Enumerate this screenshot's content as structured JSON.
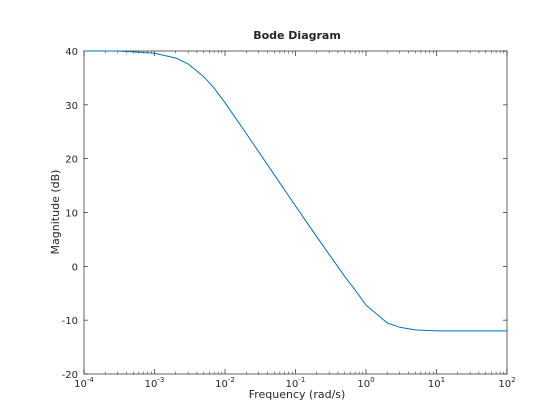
{
  "chart_data": {
    "type": "line",
    "title": "Bode Diagram",
    "xlabel": "Frequency  (rad/s)",
    "ylabel": "Magnitude (dB)",
    "xscale": "log",
    "xlim": [
      0.0001,
      100
    ],
    "ylim": [
      -20,
      40
    ],
    "grid": false,
    "x_ticks": [
      {
        "value": 0.0001,
        "base": "10",
        "exp": "-4"
      },
      {
        "value": 0.001,
        "base": "10",
        "exp": "-3"
      },
      {
        "value": 0.01,
        "base": "10",
        "exp": "-2"
      },
      {
        "value": 0.1,
        "base": "10",
        "exp": "-1"
      },
      {
        "value": 1,
        "base": "10",
        "exp": "0"
      },
      {
        "value": 10,
        "base": "10",
        "exp": "1"
      },
      {
        "value": 100,
        "base": "10",
        "exp": "2"
      }
    ],
    "y_ticks": [
      "-20",
      "-10",
      "0",
      "10",
      "20",
      "30",
      "40"
    ],
    "series": [
      {
        "color": "#0072bd",
        "x": [
          0.0001,
          0.0003,
          0.001,
          0.002,
          0.003,
          0.005,
          0.007,
          0.01,
          0.02,
          0.05,
          0.1,
          0.2,
          0.5,
          0.7,
          1,
          2,
          3,
          5,
          10,
          20,
          100
        ],
        "y": [
          40,
          40,
          39.6,
          38.7,
          37.6,
          35.2,
          33.1,
          30.4,
          24.7,
          17,
          11.2,
          5.5,
          -1.9,
          -4.4,
          -7.2,
          -10.5,
          -11.3,
          -11.8,
          -12,
          -12,
          -12
        ]
      }
    ]
  }
}
